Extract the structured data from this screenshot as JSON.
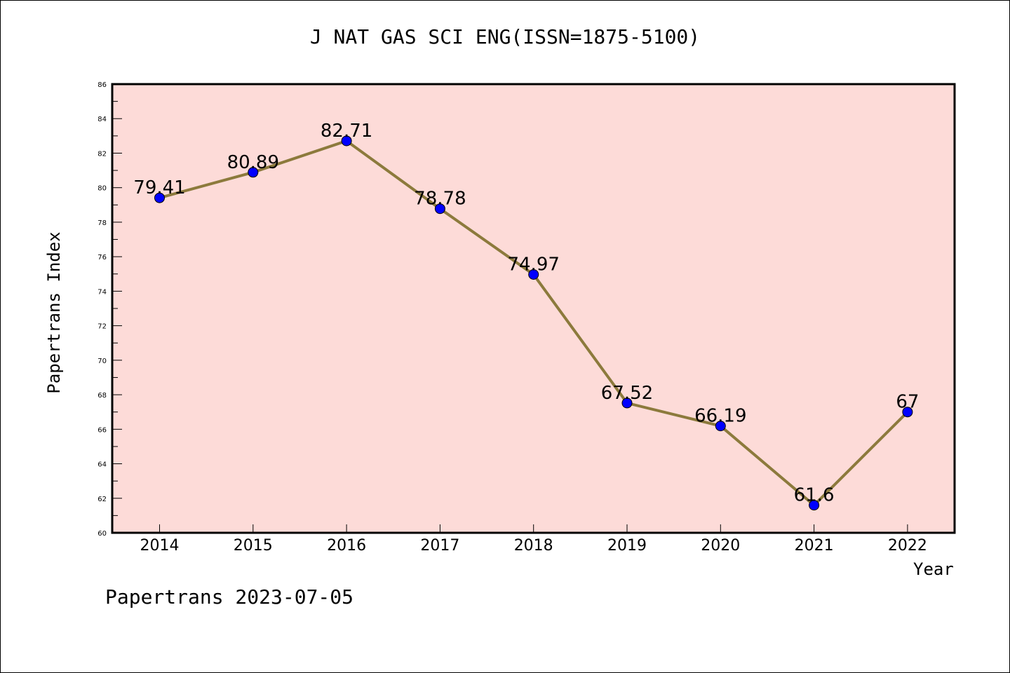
{
  "chart_data": {
    "type": "line",
    "title": "J NAT GAS SCI ENG(ISSN=1875-5100)",
    "xlabel": "Year",
    "ylabel": "Papertrans Index",
    "categories": [
      "2014",
      "2015",
      "2016",
      "2017",
      "2018",
      "2019",
      "2020",
      "2021",
      "2022"
    ],
    "series": [
      {
        "values": [
          79.41,
          80.89,
          82.71,
          78.78,
          74.97,
          67.52,
          66.19,
          61.6,
          67
        ],
        "labels": [
          "79.41",
          "80.89",
          "82.71",
          "78.78",
          "74.97",
          "67.52",
          "66.19",
          "61.6",
          "67"
        ]
      }
    ],
    "ylim": [
      60,
      86
    ],
    "y_ticks": [
      "60",
      "62",
      "64",
      "66",
      "68",
      "70",
      "72",
      "74",
      "76",
      "78",
      "80",
      "82",
      "84",
      "86"
    ],
    "grid": false,
    "colors": {
      "plot_background": "#fddbd8",
      "line": "#8c7a3c",
      "marker": "#0000ff"
    }
  },
  "footer": {
    "note": "Papertrans 2023-07-05"
  }
}
